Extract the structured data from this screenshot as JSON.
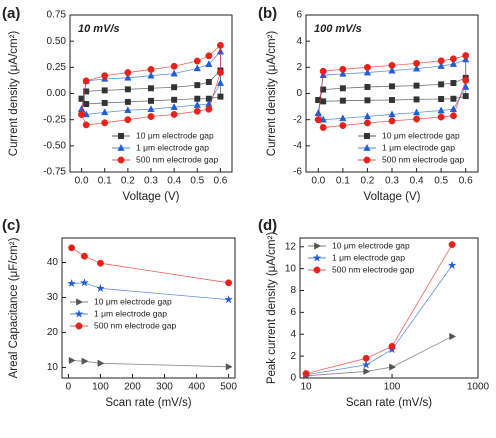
{
  "chart_data": [
    {
      "type": "line",
      "panel_label": "(a)",
      "annotation": "10 mV/s",
      "x_label": "Voltage (V)",
      "y_label": "Current density (μA/cm²)",
      "x": [
        0,
        0.02,
        0.1,
        0.2,
        0.3,
        0.4,
        0.5,
        0.55,
        0.6,
        0.6,
        0.55,
        0.5,
        0.4,
        0.3,
        0.2,
        0.1,
        0.02,
        0
      ],
      "xlim": [
        -0.05,
        0.65
      ],
      "xticks": [
        {
          "value": 0,
          "label": "0.0"
        },
        {
          "value": 0.1,
          "label": "0.1"
        },
        {
          "value": 0.2,
          "label": "0.2"
        },
        {
          "value": 0.3,
          "label": "0.3"
        },
        {
          "value": 0.4,
          "label": "0.4"
        },
        {
          "value": 0.5,
          "label": "0.5"
        },
        {
          "value": 0.6,
          "label": "0.6"
        }
      ],
      "ylim": [
        -0.75,
        0.75
      ],
      "yticks": [
        {
          "value": -0.75,
          "label": "-0.75"
        },
        {
          "value": -0.5,
          "label": "-0.50"
        },
        {
          "value": -0.25,
          "label": "-0.25"
        },
        {
          "value": 0,
          "label": "0.00"
        },
        {
          "value": 0.25,
          "label": "0.25"
        },
        {
          "value": 0.5,
          "label": "0.50"
        },
        {
          "value": 0.75,
          "label": "0.75"
        }
      ],
      "legend": "lower right",
      "series": [
        {
          "name": "10 μm electrode gap",
          "color": "#333333",
          "marker": "square",
          "values": [
            -0.05,
            0.02,
            0.03,
            0.04,
            0.05,
            0.06,
            0.08,
            0.11,
            0.22,
            -0.03,
            -0.05,
            -0.05,
            -0.06,
            -0.07,
            -0.08,
            -0.09,
            -0.1,
            -0.05
          ]
        },
        {
          "name": "1 μm electrode gap",
          "color": "#1f5fd6",
          "marker": "triangle",
          "values": [
            -0.15,
            0.12,
            0.14,
            0.15,
            0.17,
            0.19,
            0.24,
            0.28,
            0.4,
            0.1,
            -0.1,
            -0.11,
            -0.13,
            -0.15,
            -0.16,
            -0.18,
            -0.2,
            -0.15
          ]
        },
        {
          "name": "500 nm electrode gap",
          "color": "#e8221b",
          "marker": "circle",
          "values": [
            -0.2,
            0.12,
            0.17,
            0.2,
            0.23,
            0.26,
            0.31,
            0.36,
            0.46,
            0.2,
            -0.15,
            -0.17,
            -0.2,
            -0.22,
            -0.25,
            -0.28,
            -0.3,
            -0.2
          ]
        }
      ]
    },
    {
      "type": "line",
      "panel_label": "(b)",
      "annotation": "100 mV/s",
      "x_label": "Voltage (V)",
      "y_label": "Current density (μA/cm²)",
      "x": [
        0,
        0.02,
        0.1,
        0.2,
        0.3,
        0.4,
        0.5,
        0.55,
        0.6,
        0.6,
        0.55,
        0.5,
        0.4,
        0.3,
        0.2,
        0.1,
        0.02,
        0
      ],
      "xlim": [
        -0.05,
        0.65
      ],
      "xticks": [
        {
          "value": 0,
          "label": "0.0"
        },
        {
          "value": 0.1,
          "label": "0.1"
        },
        {
          "value": 0.2,
          "label": "0.2"
        },
        {
          "value": 0.3,
          "label": "0.3"
        },
        {
          "value": 0.4,
          "label": "0.4"
        },
        {
          "value": 0.5,
          "label": "0.5"
        },
        {
          "value": 0.6,
          "label": "0.6"
        }
      ],
      "ylim": [
        -6,
        6
      ],
      "yticks": [
        -6,
        -4,
        -2,
        0,
        2,
        4,
        6
      ],
      "legend": "lower right",
      "series": [
        {
          "name": "10 μm electrode gap",
          "color": "#333333",
          "marker": "square",
          "values": [
            -0.5,
            0.3,
            0.4,
            0.5,
            0.55,
            0.6,
            0.7,
            0.8,
            1.2,
            -0.2,
            -0.4,
            -0.42,
            -0.45,
            -0.5,
            -0.52,
            -0.55,
            -0.6,
            -0.5
          ]
        },
        {
          "name": "1 μm electrode gap",
          "color": "#1f5fd6",
          "marker": "triangle",
          "values": [
            -1.5,
            1.4,
            1.5,
            1.6,
            1.75,
            1.9,
            2.1,
            2.25,
            2.6,
            0.5,
            -1.2,
            -1.3,
            -1.45,
            -1.6,
            -1.75,
            -1.9,
            -2.0,
            -1.5
          ]
        },
        {
          "name": "500 nm electrode gap",
          "color": "#e8221b",
          "marker": "circle",
          "values": [
            -2,
            1.7,
            1.85,
            2.0,
            2.15,
            2.3,
            2.5,
            2.65,
            2.9,
            1.0,
            -1.7,
            -1.8,
            -1.95,
            -2.1,
            -2.25,
            -2.45,
            -2.6,
            -2
          ]
        }
      ]
    },
    {
      "type": "line",
      "panel_label": "(c)",
      "x_label": "Scan rate (mV/s)",
      "y_label": "Areal Capacitance (μF/cm²)",
      "x": [
        10,
        50,
        100,
        500
      ],
      "xlim": [
        -20,
        520
      ],
      "xticks": [
        0,
        100,
        200,
        300,
        400,
        500
      ],
      "ylim": [
        7,
        47
      ],
      "yticks": [
        10,
        20,
        30,
        40
      ],
      "legend": "center left",
      "series": [
        {
          "name": "10 μm electrode gap",
          "color": "#555555",
          "marker": "triangle-right",
          "values": [
            12,
            11.8,
            11.2,
            10.2
          ]
        },
        {
          "name": "1 μm electrode gap",
          "color": "#1f5fd6",
          "marker": "star",
          "values": [
            34,
            34.2,
            32.6,
            29.4
          ]
        },
        {
          "name": "500 nm electrode gap",
          "color": "#e8221b",
          "marker": "circle",
          "values": [
            44.2,
            41.8,
            39.8,
            34.2
          ]
        }
      ]
    },
    {
      "type": "line",
      "panel_label": "(d)",
      "x_label": "Scan rate (mV/s)",
      "y_label": "Peak current density (μA/cm²)",
      "x": [
        10,
        50,
        100,
        500
      ],
      "log_x": true,
      "xlim": [
        8.5,
        1000
      ],
      "xticks": [
        10,
        100,
        1000
      ],
      "ylim": [
        0,
        12.8
      ],
      "yticks": [
        0,
        2,
        4,
        6,
        8,
        10,
        12
      ],
      "legend": "upper left",
      "series": [
        {
          "name": "10 μm electrode gap",
          "color": "#555555",
          "marker": "triangle-right",
          "values": [
            0.2,
            0.6,
            1.0,
            3.8
          ]
        },
        {
          "name": "1 μm electrode gap",
          "color": "#1f5fd6",
          "marker": "star",
          "values": [
            0.3,
            1.2,
            2.6,
            10.3
          ]
        },
        {
          "name": "500 nm electrode gap",
          "color": "#e8221b",
          "marker": "circle",
          "values": [
            0.4,
            1.8,
            2.9,
            12.2
          ]
        }
      ]
    }
  ]
}
